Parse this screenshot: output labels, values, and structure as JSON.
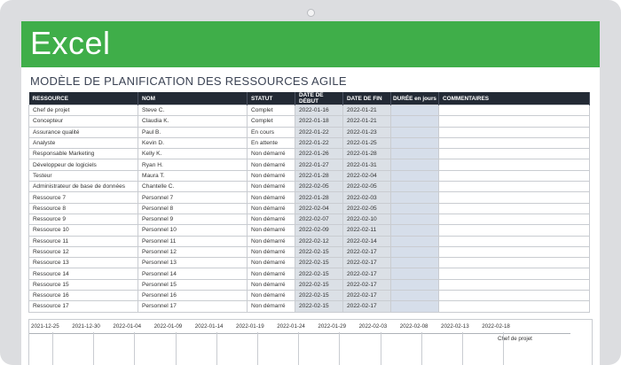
{
  "banner": {
    "title": "Excel"
  },
  "sheet": {
    "title": "MODÈLE DE PLANIFICATION DES RESSOURCES AGILE",
    "headers": {
      "resource": "RESSOURCE",
      "name": "NOM",
      "status": "STATUT",
      "start": "DATE DE DÉBUT",
      "end": "DATE DE FIN",
      "duration": "DURÉE en jours",
      "comments": "COMMENTAIRES"
    },
    "rows": [
      {
        "resource": "Chef de projet",
        "name": "Steve C.",
        "status": "Complet",
        "start": "2022-01-16",
        "end": "2022-01-21"
      },
      {
        "resource": "Concepteur",
        "name": "Claudia K.",
        "status": "Complet",
        "start": "2022-01-18",
        "end": "2022-01-21"
      },
      {
        "resource": "Assurance qualité",
        "name": "Paul B.",
        "status": "En cours",
        "start": "2022-01-22",
        "end": "2022-01-23"
      },
      {
        "resource": "Analyste",
        "name": "Kevin D.",
        "status": "En attente",
        "start": "2022-01-22",
        "end": "2022-01-25"
      },
      {
        "resource": "Responsable Marketing",
        "name": "Kelly K.",
        "status": "Non démarré",
        "start": "2022-01-26",
        "end": "2022-01-28"
      },
      {
        "resource": "Développeur de logiciels",
        "name": "Ryan H.",
        "status": "Non démarré",
        "start": "2022-01-27",
        "end": "2022-01-31"
      },
      {
        "resource": "Testeur",
        "name": "Maura T.",
        "status": "Non démarré",
        "start": "2022-01-28",
        "end": "2022-02-04"
      },
      {
        "resource": "Administrateur de base de données",
        "name": "Chantelle C.",
        "status": "Non démarré",
        "start": "2022-02-05",
        "end": "2022-02-05"
      },
      {
        "resource": "Ressource 7",
        "name": "Personnel 7",
        "status": "Non démarré",
        "start": "2022-01-28",
        "end": "2022-02-03"
      },
      {
        "resource": "Ressource 8",
        "name": "Personnel 8",
        "status": "Non démarré",
        "start": "2022-02-04",
        "end": "2022-02-05"
      },
      {
        "resource": "Ressource 9",
        "name": "Personnel 9",
        "status": "Non démarré",
        "start": "2022-02-07",
        "end": "2022-02-10"
      },
      {
        "resource": "Ressource 10",
        "name": "Personnel 10",
        "status": "Non démarré",
        "start": "2022-02-09",
        "end": "2022-02-11"
      },
      {
        "resource": "Ressource 11",
        "name": "Personnel 11",
        "status": "Non démarré",
        "start": "2022-02-12",
        "end": "2022-02-14"
      },
      {
        "resource": "Ressource 12",
        "name": "Personnel 12",
        "status": "Non démarré",
        "start": "2022-02-15",
        "end": "2022-02-17"
      },
      {
        "resource": "Ressource 13",
        "name": "Personnel 13",
        "status": "Non démarré",
        "start": "2022-02-15",
        "end": "2022-02-17"
      },
      {
        "resource": "Ressource 14",
        "name": "Personnel 14",
        "status": "Non démarré",
        "start": "2022-02-15",
        "end": "2022-02-17"
      },
      {
        "resource": "Ressource 15",
        "name": "Personnel 15",
        "status": "Non démarré",
        "start": "2022-02-15",
        "end": "2022-02-17"
      },
      {
        "resource": "Ressource 16",
        "name": "Personnel 16",
        "status": "Non démarré",
        "start": "2022-02-15",
        "end": "2022-02-17"
      },
      {
        "resource": "Ressource 17",
        "name": "Personnel 17",
        "status": "Non démarré",
        "start": "2022-02-15",
        "end": "2022-02-17"
      }
    ]
  },
  "gantt": {
    "axis_labels": [
      "2021-12-25",
      "2021-12-30",
      "2022-01-04",
      "2022-01-09",
      "2022-01-14",
      "2022-01-19",
      "2022-01-24",
      "2022-01-29",
      "2022-02-03",
      "2022-02-08",
      "2022-02-13",
      "2022-02-18"
    ],
    "first_task_label": "Chef de projet"
  },
  "colors": {
    "banner": "#3fae49",
    "header": "#232a35",
    "date_cells": "#dbe0e6",
    "duration_cells": "#d6deea"
  }
}
